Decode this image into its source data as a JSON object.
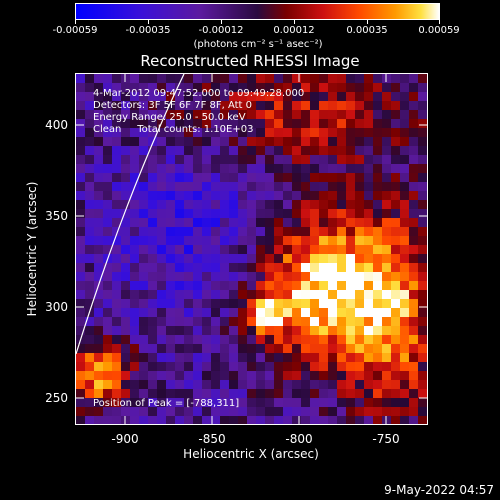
{
  "colorbar": {
    "tick_labels": [
      "-0.00059",
      "-0.00035",
      "-0.00012",
      "0.00012",
      "0.00035",
      "0.00059"
    ],
    "units": "(photons cm⁻² s⁻¹ asec⁻²)"
  },
  "title": "Reconstructed RHESSI Image",
  "annotations": {
    "time_range": "4-Mar-2012 09:47:52.000 to 09:49:28.000",
    "detectors": "Detectors: 3F 5F 6F 7F 8F, Att 0",
    "energy": "Energy Range: 25.0 - 50.0 keV",
    "clean": "Clean     Total counts: 1.10E+03",
    "peak": "Position of Peak = [-788,311]"
  },
  "axes": {
    "xlabel": "Heliocentric X (arcsec)",
    "ylabel": "Heliocentric Y (arcsec)",
    "x_ticks": [
      "-900",
      "-850",
      "-800",
      "-750"
    ],
    "y_ticks": [
      "250",
      "300",
      "350",
      "400"
    ]
  },
  "footer_date": "9-May-2022 04:57",
  "colors": {
    "negative": "#0000ff",
    "zero": "#2a0a40",
    "positive_peak": "#ffffff",
    "limb_line": "#ffffff"
  }
}
